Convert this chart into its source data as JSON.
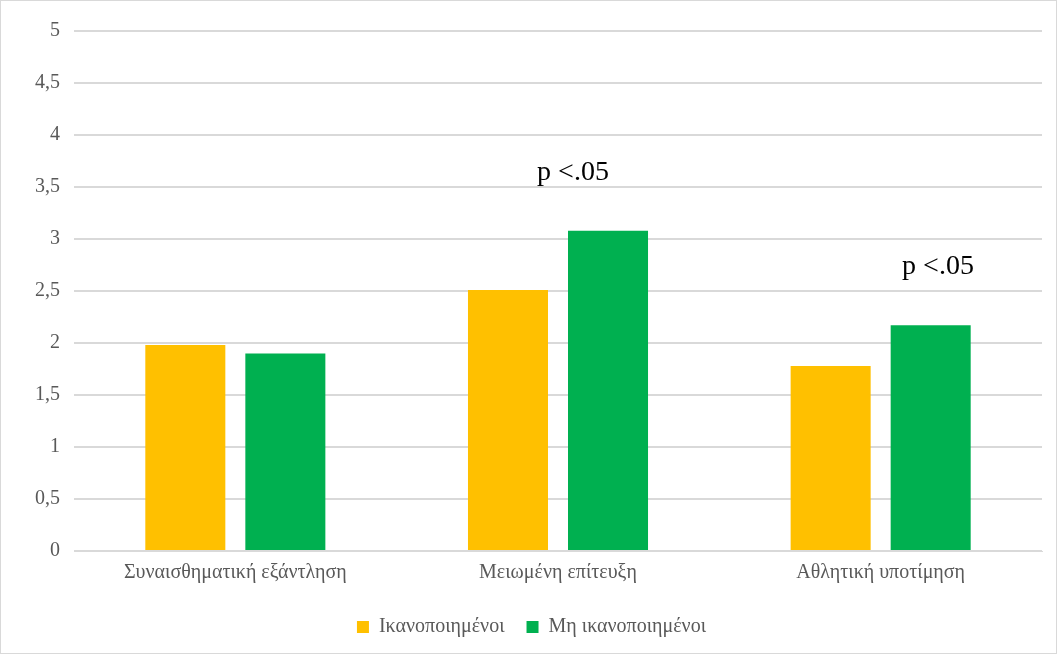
{
  "chart_data": {
    "type": "bar",
    "categories": [
      "Συναισθηματική εξάντληση",
      "Μειωμένη επίτευξη",
      "Αθλητική υποτίμηση"
    ],
    "series": [
      {
        "name": "Ικανοποιημένοι",
        "color": "#ffc000",
        "values": [
          1.98,
          2.51,
          1.78
        ]
      },
      {
        "name": "Μη ικανοποιημένοι",
        "color": "#00b050",
        "values": [
          1.9,
          3.08,
          2.17
        ]
      }
    ],
    "ylim": [
      0,
      5
    ],
    "yticks": [
      0,
      {
        "value": 0.5,
        "label": "0,5"
      },
      1,
      {
        "value": 1.5,
        "label": "1,5"
      },
      2,
      {
        "value": 2.5,
        "label": "2,5"
      },
      3,
      {
        "value": 3.5,
        "label": "3,5"
      },
      4,
      {
        "value": 4.5,
        "label": "4,5"
      },
      5
    ],
    "grid": "y",
    "legend": "bottom",
    "annotations": [
      "p <.05",
      "p <.05"
    ]
  }
}
